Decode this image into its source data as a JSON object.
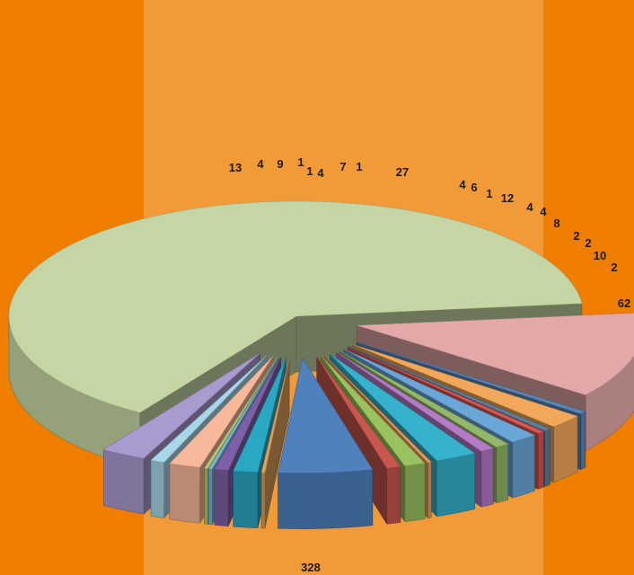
{
  "colors": {
    "background": "#ee7d00",
    "panel": "#f29a38"
  },
  "chart_data": {
    "type": "pie",
    "style": "3d-exploded",
    "values": [
      328,
      62,
      2,
      10,
      2,
      2,
      8,
      4,
      4,
      12,
      1,
      6,
      4,
      27,
      1,
      7,
      4,
      1,
      1,
      9,
      4,
      13
    ],
    "labels": [
      "328",
      "62",
      "2",
      "10",
      "2",
      "2",
      "8",
      "4",
      "4",
      "12",
      "1",
      "6",
      "4",
      "27",
      "1",
      "7",
      "4",
      "1",
      "1",
      "9",
      "4",
      "13"
    ],
    "colors": [
      "#c5d6a4",
      "#e3a9a8",
      "#5b86b8",
      "#f2a85a",
      "#5f7e9c",
      "#d8574f",
      "#6aa6d8",
      "#93b867",
      "#b47bc6",
      "#37b2cc",
      "#e89a58",
      "#9ac25e",
      "#c8574f",
      "#4f81bd",
      "#dda15b",
      "#2aa7c3",
      "#7d60a8",
      "#7bb8d8",
      "#b5c86f",
      "#f8b89a",
      "#a8d7e8",
      "#a99bd0"
    ],
    "legend": "none"
  }
}
